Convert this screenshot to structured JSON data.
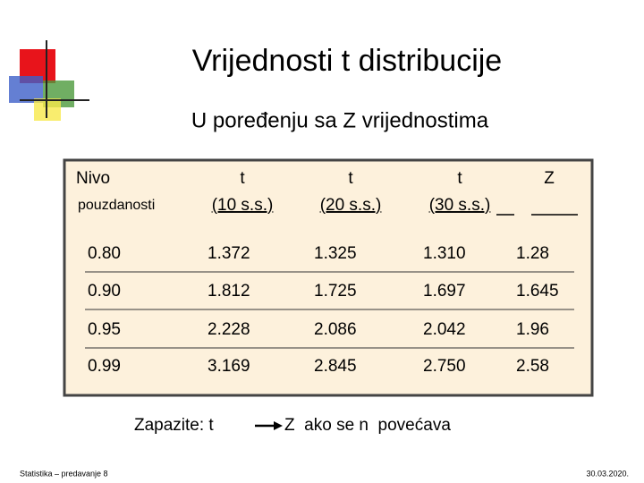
{
  "header": {
    "title": "Vrijednosti t distribucije",
    "subtitle": "U poređenju sa Z vrijednostima"
  },
  "table": {
    "headers": [
      [
        "Nivo",
        "pouzdanosti"
      ],
      [
        "t",
        "(10 s.s.)"
      ],
      [
        "t",
        "(20 s.s.)"
      ],
      [
        "t",
        "(30 s.s.)"
      ],
      [
        "Z"
      ]
    ],
    "rows": [
      [
        "0.80",
        "1.372",
        "1.325",
        "1.310",
        "1.28"
      ],
      [
        "0.90",
        "1.812",
        "1.725",
        "1.697",
        "1.645"
      ],
      [
        "0.95",
        "2.228",
        "2.086",
        "2.042",
        "1.96"
      ],
      [
        "0.99",
        "3.169",
        "2.845",
        "2.750",
        "2.58"
      ]
    ]
  },
  "note": {
    "left": "Zapazite: t",
    "right": "Z  ako se n  povećava"
  },
  "footer": {
    "left": "Statistika – predavanje 8",
    "right": "30.03.2020."
  }
}
